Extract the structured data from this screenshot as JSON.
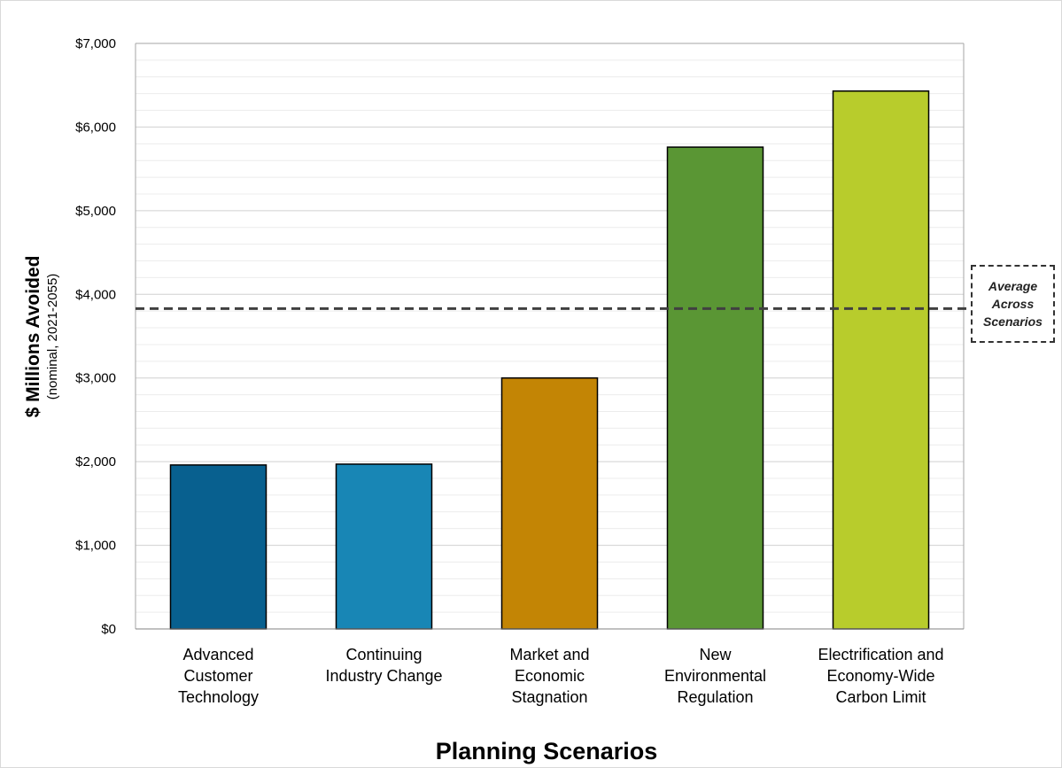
{
  "chart_data": {
    "type": "bar",
    "title": "",
    "xlabel": "Planning Scenarios",
    "ylabel": "$ Millions Avoided",
    "ylabel_sub": "(nominal, 2021-2055)",
    "ylim": [
      0,
      7000
    ],
    "ytick_step": 1000,
    "ytick_labels": [
      "$0",
      "$1,000",
      "$2,000",
      "$3,000",
      "$4,000",
      "$5,000",
      "$6,000",
      "$7,000"
    ],
    "minor_gridline_step": 200,
    "grid": true,
    "categories": [
      [
        "Advanced",
        "Customer",
        "Technology"
      ],
      [
        "Continuing",
        "Industry Change"
      ],
      [
        "Market and",
        "Economic",
        "Stagnation"
      ],
      [
        "New",
        "Environmental",
        "Regulation"
      ],
      [
        "Electrification and",
        "Economy-Wide",
        "Carbon Limit"
      ]
    ],
    "values": [
      1960,
      1970,
      3000,
      5760,
      6430
    ],
    "bar_colors": [
      "#08608f",
      "#1886b5",
      "#c38505",
      "#5a9634",
      "#b8cc2c"
    ],
    "average_line": {
      "value": 3830,
      "label_lines": [
        "Average",
        "Across",
        "Scenarios"
      ],
      "style": "dashed"
    }
  }
}
